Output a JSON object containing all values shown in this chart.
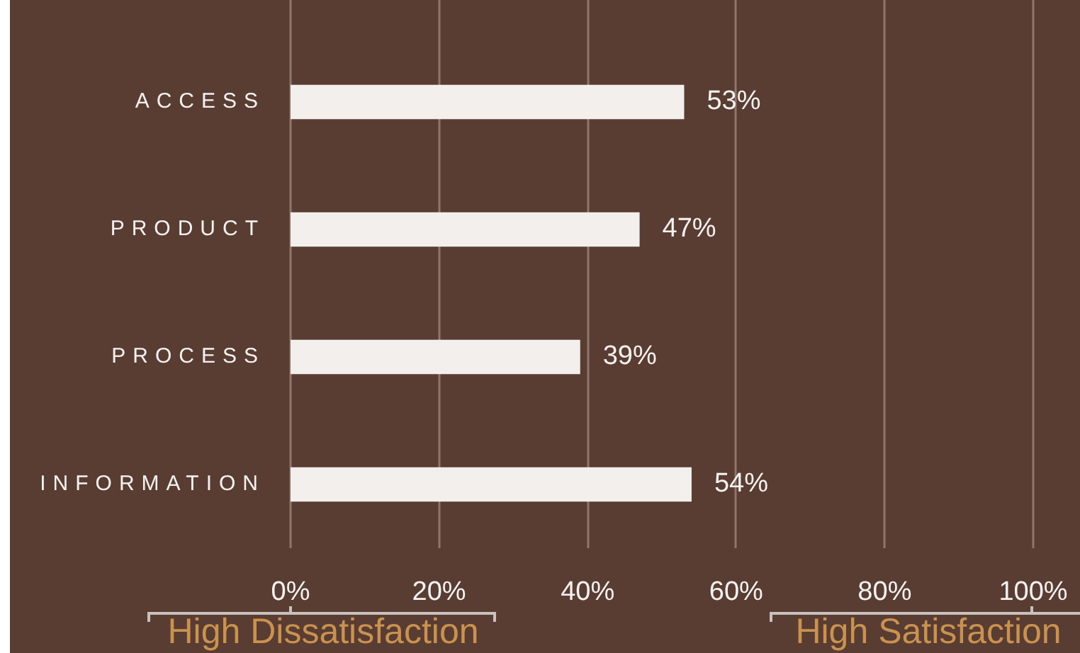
{
  "chart_data": {
    "type": "bar",
    "orientation": "horizontal",
    "categories": [
      "ACCESS",
      "PRODUCT",
      "PROCESS",
      "INFORMATION"
    ],
    "values": [
      53,
      47,
      39,
      54
    ],
    "color": "#f2efed",
    "value_labels": [
      "53%",
      "47%",
      "39%",
      "54%"
    ],
    "xlim": [
      0,
      100
    ],
    "xticks": [
      {
        "value": 0,
        "label": "0%"
      },
      {
        "value": 20,
        "label": "20%"
      },
      {
        "value": 40,
        "label": "40%"
      },
      {
        "value": 60,
        "label": "60%"
      },
      {
        "value": 80,
        "label": "80%"
      },
      {
        "value": 100,
        "label": "100%"
      }
    ],
    "grid": "x",
    "annotations": [
      "High Dissatisfaction",
      "High Satisfaction"
    ]
  }
}
